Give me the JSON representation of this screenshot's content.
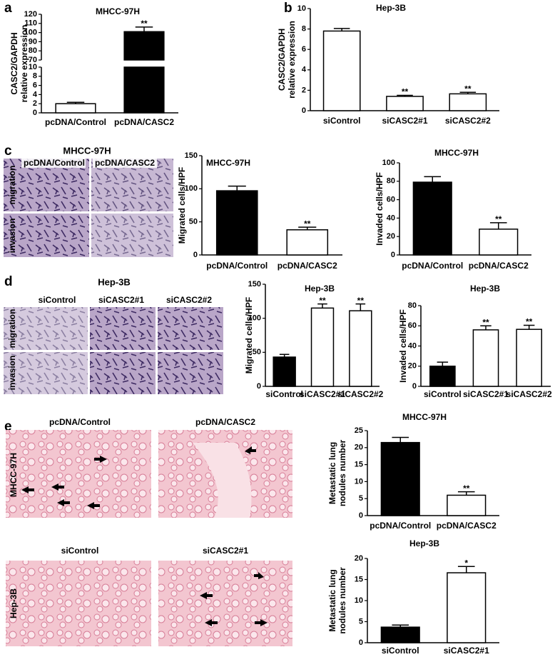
{
  "panel_letters": [
    "a",
    "b",
    "c",
    "d",
    "e"
  ],
  "chart_data": [
    {
      "type": "bar",
      "title": "MHCC-97H",
      "ylabel": [
        "CASC2/GAPDH",
        "relative expression"
      ],
      "categories": [
        "pcDNA/Control",
        "pcDNA/CASC2"
      ],
      "values": [
        2,
        101
      ],
      "errors": [
        0.3,
        5
      ],
      "colors": [
        "#ffffff",
        "#000000"
      ],
      "stars": [
        null,
        "**"
      ],
      "ylim": [
        0,
        120
      ],
      "ybreak": [
        10,
        70
      ],
      "yticks": [
        0,
        2,
        4,
        6,
        8,
        10,
        70,
        80,
        90,
        100,
        110,
        120
      ]
    },
    {
      "type": "bar",
      "title": "Hep-3B",
      "ylabel": [
        "CASC2/GAPDH",
        "relative expression"
      ],
      "categories": [
        "siControl",
        "siCASC2#1",
        "siCASC2#2"
      ],
      "values": [
        7.8,
        1.4,
        1.65
      ],
      "errors": [
        0.25,
        0.1,
        0.15
      ],
      "colors": [
        "#ffffff",
        "#ffffff",
        "#ffffff"
      ],
      "stars": [
        null,
        "**",
        "**"
      ],
      "ylim": [
        0,
        10
      ],
      "yticks": [
        0,
        2,
        4,
        6,
        8,
        10
      ]
    },
    {
      "type": "bar",
      "title": "MHCC-97H",
      "ylabel": [
        "Migrated cells/HPF"
      ],
      "categories": [
        "pcDNA/Control",
        "pcDNA/CASC2"
      ],
      "values": [
        97,
        38
      ],
      "errors": [
        7,
        4
      ],
      "colors": [
        "#000000",
        "#ffffff"
      ],
      "stars": [
        null,
        "**"
      ],
      "ylim": [
        0,
        150
      ],
      "yticks": [
        0,
        50,
        100,
        150
      ]
    },
    {
      "type": "bar",
      "title": "MHCC-97H",
      "ylabel": [
        "Invaded cells/HPF"
      ],
      "categories": [
        "pcDNA/Control",
        "pcDNA/CASC2"
      ],
      "values": [
        79,
        28
      ],
      "errors": [
        6,
        7
      ],
      "colors": [
        "#000000",
        "#ffffff"
      ],
      "stars": [
        null,
        "**"
      ],
      "ylim": [
        0,
        100
      ],
      "yticks": [
        0,
        20,
        40,
        60,
        80,
        100
      ]
    },
    {
      "type": "bar",
      "title": "Hep-3B",
      "ylabel": [
        "Migrated cells/HPF"
      ],
      "categories": [
        "siControl",
        "siCASC2#1",
        "siCASC2#2"
      ],
      "values": [
        43,
        115,
        111
      ],
      "errors": [
        4,
        6,
        10
      ],
      "colors": [
        "#000000",
        "#ffffff",
        "#ffffff"
      ],
      "stars": [
        null,
        "**",
        "**"
      ],
      "ylim": [
        0,
        150
      ],
      "yticks": [
        0,
        50,
        100,
        150
      ]
    },
    {
      "type": "bar",
      "title": "Hep-3B",
      "ylabel": [
        "Invaded cells/HPF"
      ],
      "categories": [
        "siControl",
        "siCASC2#1",
        "siCASC2#2"
      ],
      "values": [
        20,
        56,
        56.5
      ],
      "errors": [
        4,
        4,
        4
      ],
      "colors": [
        "#000000",
        "#ffffff",
        "#ffffff"
      ],
      "stars": [
        null,
        "**",
        "**"
      ],
      "ylim": [
        0,
        80
      ],
      "yticks": [
        0,
        20,
        40,
        60,
        80
      ]
    },
    {
      "type": "bar",
      "title": "MHCC-97H",
      "ylabel": [
        "Metastatic lung",
        "nodules number"
      ],
      "categories": [
        "pcDNA/Control",
        "pcDNA/CASC2"
      ],
      "values": [
        21.5,
        6
      ],
      "errors": [
        1.5,
        1
      ],
      "colors": [
        "#000000",
        "#ffffff"
      ],
      "stars": [
        null,
        "**"
      ],
      "ylim": [
        0,
        25
      ],
      "yticks": [
        0,
        5,
        10,
        15,
        20,
        25
      ]
    },
    {
      "type": "bar",
      "title": "Hep-3B",
      "ylabel": [
        "Metastatic lung",
        "nodules number"
      ],
      "categories": [
        "siControl",
        "siCASC2#1"
      ],
      "values": [
        3.7,
        16.6
      ],
      "errors": [
        0.5,
        1.5
      ],
      "colors": [
        "#000000",
        "#ffffff"
      ],
      "stars": [
        null,
        "*"
      ],
      "ylim": [
        0,
        20
      ],
      "yticks": [
        0,
        5,
        10,
        15,
        20
      ]
    }
  ],
  "micrographs": [
    {
      "title": "MHCC-97H",
      "columns": [
        "pcDNA/Control",
        "pcDNA/CASC2"
      ],
      "rows": [
        "migration",
        "invasion"
      ]
    },
    {
      "title": "Hep-3B",
      "columns": [
        "siControl",
        "siCASC2#1",
        "siCASC2#2"
      ],
      "rows": [
        "migration",
        "invasion"
      ]
    },
    {
      "rows": [
        {
          "label": "MHCC-97H",
          "columns": [
            "pcDNA/Control",
            "pcDNA/CASC2"
          ]
        },
        {
          "label": "Hep-3B",
          "columns": [
            "siControl",
            "siCASC2#1"
          ]
        }
      ]
    }
  ]
}
